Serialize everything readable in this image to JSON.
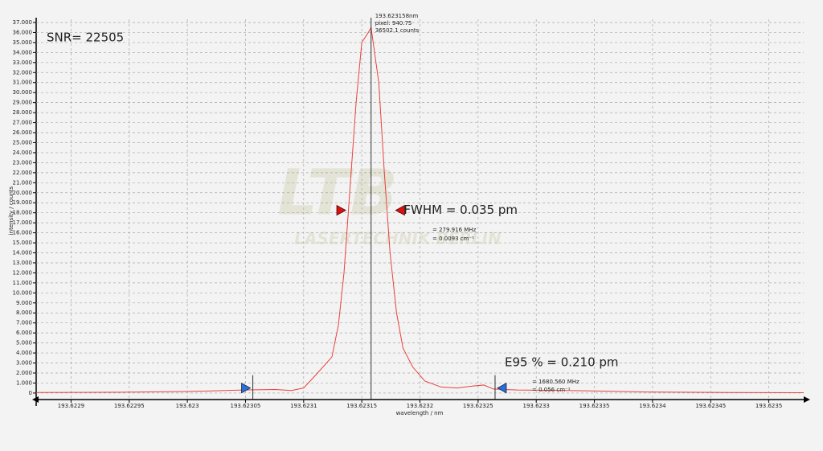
{
  "chart_data": {
    "type": "line",
    "x_label": "wavelength / nm",
    "y_label": "intensity / counts",
    "watermark": [
      "LTB",
      "LASERTECHNIK BERLIN"
    ],
    "grid": true,
    "xlim": [
      193.62287,
      193.62353
    ],
    "ylim": [
      -650,
      37000
    ],
    "xticks": [
      193.6229,
      193.62295,
      193.623,
      193.62305,
      193.6231,
      193.62315,
      193.6232,
      193.62325,
      193.6233,
      193.62335,
      193.6234,
      193.62345,
      193.6235
    ],
    "yticks": [
      0,
      {
        "value": 1000,
        "label": "1.000"
      },
      {
        "value": 2000,
        "label": "2.000"
      },
      {
        "value": 3000,
        "label": "3.000"
      },
      {
        "value": 4000,
        "label": "4.000"
      },
      {
        "value": 5000,
        "label": "5.000"
      },
      {
        "value": 6000,
        "label": "6.000"
      },
      {
        "value": 7000,
        "label": "7.000"
      },
      {
        "value": 8000,
        "label": "8.000"
      },
      {
        "value": 9000,
        "label": "9.000"
      },
      {
        "value": 10000,
        "label": "10.000"
      },
      {
        "value": 11000,
        "label": "11.000"
      },
      {
        "value": 12000,
        "label": "12.000"
      },
      {
        "value": 13000,
        "label": "13.000"
      },
      {
        "value": 14000,
        "label": "14.000"
      },
      {
        "value": 15000,
        "label": "15.000"
      },
      {
        "value": 16000,
        "label": "16.000"
      },
      {
        "value": 17000,
        "label": "17.000"
      },
      {
        "value": 18000,
        "label": "18.000"
      },
      {
        "value": 19000,
        "label": "19.000"
      },
      {
        "value": 20000,
        "label": "20.000"
      },
      {
        "value": 21000,
        "label": "21.000"
      },
      {
        "value": 22000,
        "label": "22.000"
      },
      {
        "value": 23000,
        "label": "23.000"
      },
      {
        "value": 24000,
        "label": "24.000"
      },
      {
        "value": 25000,
        "label": "25.000"
      },
      {
        "value": 26000,
        "label": "26.000"
      },
      {
        "value": 27000,
        "label": "27.000"
      },
      {
        "value": 28000,
        "label": "28.000"
      },
      {
        "value": 29000,
        "label": "29.000"
      },
      {
        "value": 30000,
        "label": "30.000"
      },
      {
        "value": 31000,
        "label": "31.000"
      },
      {
        "value": 32000,
        "label": "32.000"
      },
      {
        "value": 33000,
        "label": "33.000"
      },
      {
        "value": 34000,
        "label": "34.000"
      },
      {
        "value": 35000,
        "label": "35.000"
      },
      {
        "value": 36000,
        "label": "36.000"
      },
      {
        "value": 37000,
        "label": "37.000"
      }
    ],
    "x": [
      193.6228708,
      193.6229438,
      193.6229993,
      193.6230479,
      193.6230757,
      193.6230896,
      193.6231,
      193.6231104,
      193.6231243,
      193.6231299,
      193.6231347,
      193.6231396,
      193.6231451,
      193.62315,
      193.6231556,
      193.623158,
      193.6231646,
      193.6231694,
      193.6231743,
      193.6231799,
      193.6231854,
      193.6231938,
      193.6232042,
      193.6232181,
      193.6232319,
      193.6232458,
      193.6232549,
      193.6232632,
      193.623284,
      193.6233257,
      193.6233535,
      193.6233951,
      193.6234646,
      193.62353
    ],
    "series": [
      {
        "color": "#e8413c",
        "values": [
          50,
          80,
          150,
          300,
          350,
          250,
          500,
          1800,
          3600,
          6800,
          12000,
          20000,
          29000,
          35000,
          36000,
          36502,
          31000,
          22000,
          14000,
          8000,
          4500,
          2600,
          1200,
          600,
          500,
          700,
          800,
          400,
          300,
          250,
          200,
          100,
          50,
          30
        ]
      }
    ],
    "cursor_x": 193.623158,
    "cursor_labels": [
      "193.623158nm",
      "pixel:  940.75",
      "36502.1 counts"
    ],
    "snr": "SNR= 22505",
    "fwhm": {
      "text": "FWHM = 0.035 pm",
      "x": [
        193.6231361,
        193.6231792
      ],
      "y": 18250,
      "color": "#e01010",
      "details": [
        "= 279.916 MHz",
        "= 0.0093 cm⁻¹"
      ]
    },
    "e95": {
      "text": "E95 % = 0.210 pm",
      "x": [
        193.6230563,
        193.6232646
      ],
      "y": 500,
      "color": "#2a6fd6",
      "details": [
        "= 1680.560 MHz",
        "= 0.056 cm⁻¹"
      ]
    }
  }
}
